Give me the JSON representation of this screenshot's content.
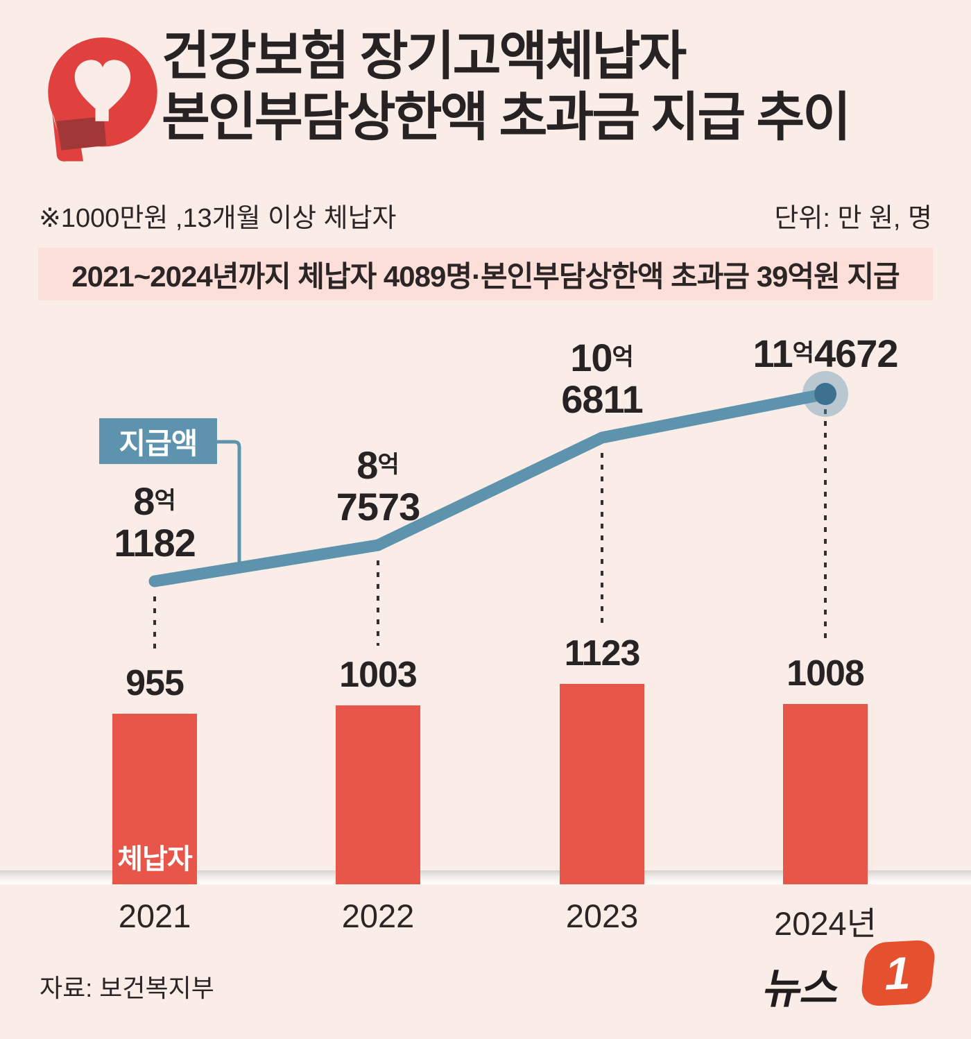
{
  "header": {
    "title_line1": "건강보험 장기고액체납자",
    "title_line2": "본인부담상한액 초과금 지급 추이",
    "note": "※1000만원 ,13개월 이상 체납자",
    "unit": "단위: 만 원, 명",
    "banner": "2021~2024년까지 체납자 4089명·본인부담상한액 초과금 39억원 지급"
  },
  "chart_data": {
    "type": "line+bar combo",
    "categories": [
      "2021",
      "2022",
      "2023",
      "2024년"
    ],
    "series": [
      {
        "name": "지급액",
        "type": "line",
        "unit": "만 원",
        "color": "#5d93ad",
        "dot_color": "#3d7190",
        "halo_color": "rgba(93,147,173,0.42)",
        "values": [
          81182,
          87573,
          106811,
          114672
        ],
        "label_lines": [
          [
            [
              [
                "8",
                false
              ],
              [
                "억",
                true
              ]
            ],
            [
              [
                "1182",
                false
              ]
            ]
          ],
          [
            [
              [
                "8",
                false
              ],
              [
                "억",
                true
              ]
            ],
            [
              [
                "7573",
                false
              ]
            ]
          ],
          [
            [
              [
                "10",
                false
              ],
              [
                "억",
                true
              ]
            ],
            [
              [
                "6811",
                false
              ]
            ]
          ],
          [
            [
              [
                "11",
                false
              ],
              [
                "억",
                true
              ],
              [
                "4672",
                false
              ]
            ]
          ]
        ]
      },
      {
        "name": "체납자",
        "type": "bar",
        "unit": "명",
        "color": "#e8564a",
        "values": [
          955,
          1003,
          1123,
          1008
        ]
      }
    ],
    "legend": {
      "line_label": "지급액",
      "bar_label": "체납자"
    },
    "dotted_guide_color": "#332e2f"
  },
  "footer": {
    "source": "자료: 보건복지부",
    "brand_text": "뉴스",
    "brand_number": "1"
  }
}
